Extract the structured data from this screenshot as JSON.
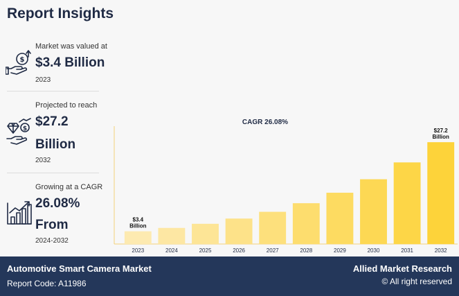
{
  "header": {
    "title": "Report Insights"
  },
  "metrics": [
    {
      "icon": "hand-money-icon",
      "label": "Market was valued at",
      "value": "$3.4 Billion",
      "sub": "2023"
    },
    {
      "icon": "hand-diamond-icon",
      "label": "Projected to reach",
      "value": "$27.2",
      "value2": "Billion",
      "sub": "2032"
    },
    {
      "icon": "growth-chart-icon",
      "label": "Growing at a CAGR",
      "value": "26.08%",
      "value2": "From",
      "sub": "2024-2032"
    }
  ],
  "chart_data": {
    "type": "bar",
    "title": "CAGR 26.08%",
    "categories": [
      "2023",
      "2024",
      "2025",
      "2026",
      "2027",
      "2028",
      "2029",
      "2030",
      "2031",
      "2032"
    ],
    "values": [
      3.4,
      4.3,
      5.4,
      6.8,
      8.6,
      10.9,
      13.7,
      17.3,
      21.8,
      27.2
    ],
    "data_labels": [
      {
        "index": 0,
        "line1": "$3.4",
        "line2": "Billion"
      },
      {
        "index": 9,
        "line1": "$27.2",
        "line2": "Billion"
      }
    ],
    "ylim": [
      0,
      30
    ],
    "colors": {
      "start": "#fdeab0",
      "end": "#fdd33a",
      "axis": "#f3d27a"
    },
    "grid": false
  },
  "footer": {
    "title": "Automotive Smart Camera Market",
    "code": "Report Code: A11986",
    "brand": "Allied Market Research",
    "rights": "© All right reserved"
  }
}
